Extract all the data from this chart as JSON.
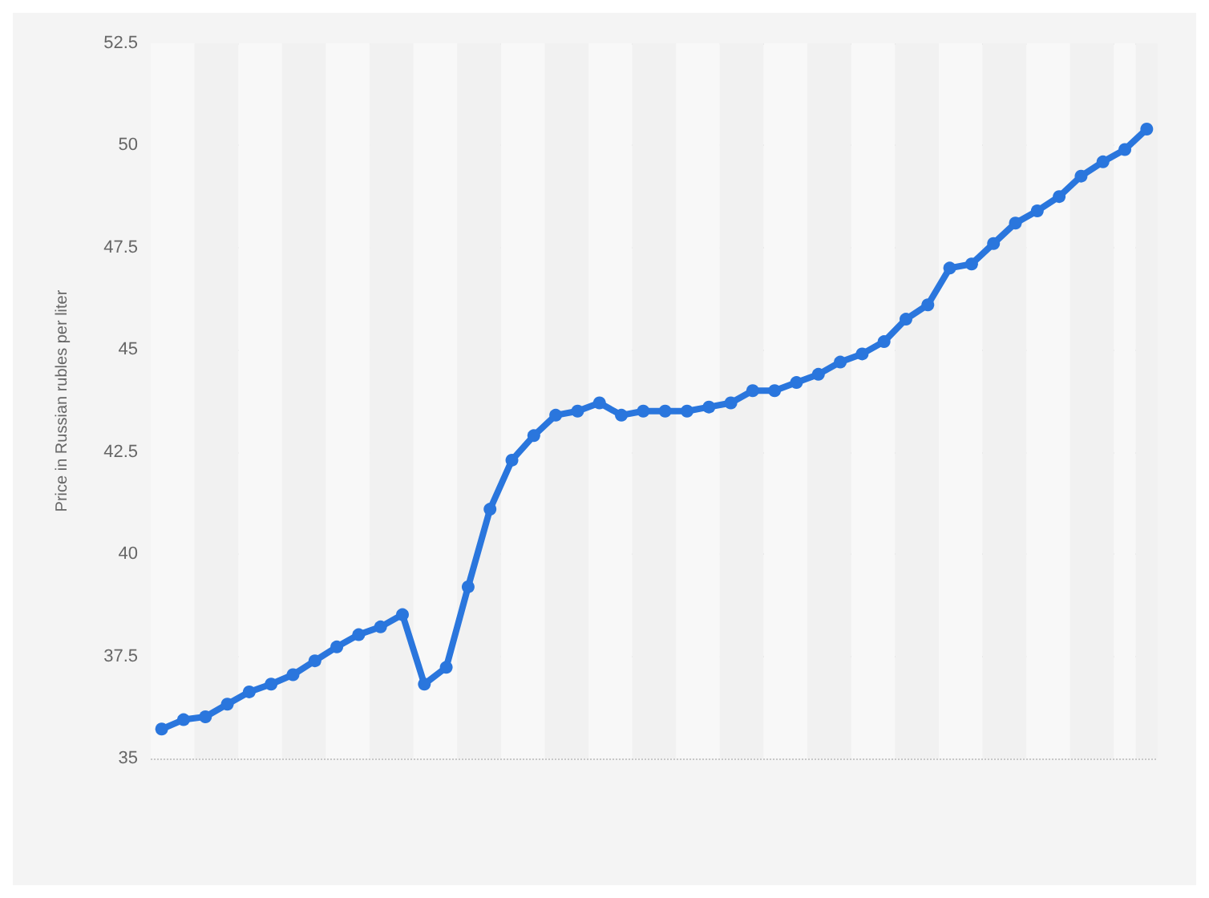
{
  "chart_data": {
    "type": "line",
    "ylabel": "Price in Russian rubles per liter",
    "categories": [
      null,
      null,
      null,
      null,
      null,
      null,
      null,
      null,
      null,
      null,
      null,
      null,
      null,
      null,
      null,
      null,
      null,
      null,
      null,
      null,
      null,
      null,
      null,
      null,
      null,
      null,
      null,
      null,
      null,
      null,
      null,
      null,
      null,
      null,
      null,
      null,
      null,
      null,
      null,
      null,
      null,
      null,
      null,
      null,
      null,
      null
    ],
    "series": [
      {
        "color": "#2a76dd",
        "values": [
          35.72,
          35.95,
          36.02,
          36.33,
          36.63,
          36.82,
          37.05,
          37.39,
          37.73,
          38.03,
          38.22,
          38.52,
          36.82,
          37.23,
          39.2,
          41.1,
          42.3,
          42.9,
          43.4,
          43.5,
          43.7,
          43.4,
          43.5,
          43.5,
          43.5,
          43.6,
          43.7,
          44.0,
          44.0,
          44.2,
          44.4,
          44.7,
          44.9,
          45.2,
          45.75,
          46.1,
          47.0,
          47.1,
          47.6,
          48.1,
          48.4,
          48.75,
          49.25,
          49.6,
          49.9,
          50.4
        ]
      }
    ],
    "ylim": [
      35,
      52.5
    ],
    "yticks": [
      35,
      37.5,
      40,
      42.5,
      45,
      47.5,
      50,
      52.5
    ],
    "grid": "y",
    "marker": "circle",
    "line_style": "solid",
    "tick_labels": "y"
  }
}
